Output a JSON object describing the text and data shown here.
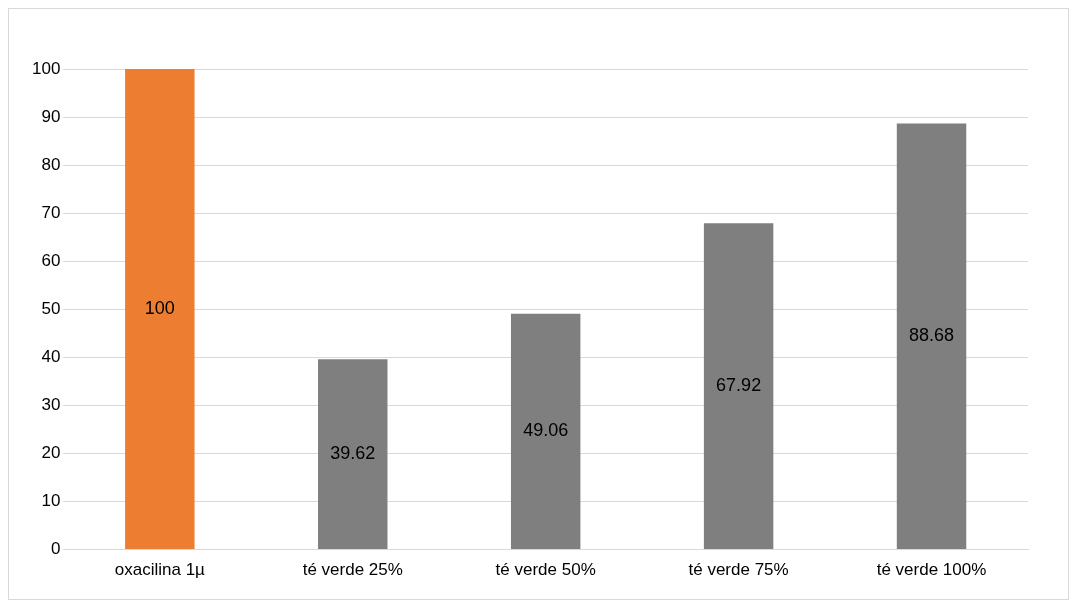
{
  "chart_data": {
    "type": "bar",
    "categories": [
      "oxacilina 1µ",
      "té verde 25%",
      "té verde 50%",
      "té verde 75%",
      "té verde 100%"
    ],
    "values": [
      100,
      39.62,
      49.06,
      67.92,
      88.68
    ],
    "colors": [
      "#ed7d31",
      "#7f7f7f",
      "#7f7f7f",
      "#7f7f7f",
      "#7f7f7f"
    ],
    "ylim": [
      0,
      100
    ],
    "yticks": [
      0,
      10,
      20,
      30,
      40,
      50,
      60,
      70,
      80,
      90,
      100
    ],
    "grid": "y",
    "data_labels": true,
    "legend": false
  }
}
